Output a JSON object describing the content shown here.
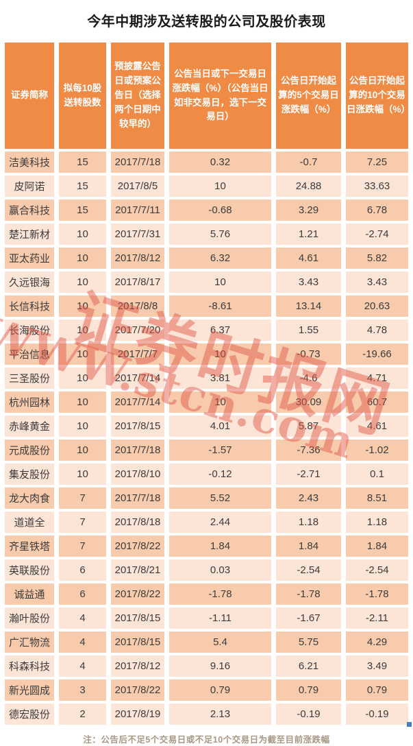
{
  "title": "今年中期涉及送转股的公司及股价表现",
  "note": "注：公告后不足5个交易日或不足10个交易日为截至目前涨跌幅",
  "watermark": {
    "cn_text": "证券时报网",
    "url_text": "WWW.stcn.com",
    "color": "#e05644"
  },
  "colors": {
    "header_bg": "#f08b45",
    "row_dark": "#f8cbad",
    "row_light": "#fce4d6",
    "header_text": "#ffffff",
    "body_text": "#3b3b3b",
    "note_text": "#a89784",
    "title_text": "#1a1a1a",
    "handle_marker": "#4a7ebb"
  },
  "chart_data": {
    "type": "table",
    "title": "今年中期涉及送转股的公司及股价表现",
    "columns": [
      "证券简称",
      "拟每10股送转股数",
      "预披露公告日或预案公告日（选择两个日期中较早的）",
      "公告当日或下一交易日涨跌幅（%）（公告当日如非交易日，选下一交易日）",
      "公告日开始起算的5个交易日涨跌幅（%）",
      "公告日开始起算的10个交易日涨跌幅（%）"
    ],
    "rows": [
      [
        "洁美科技",
        "15",
        "2017/7/18",
        "0.32",
        "-0.7",
        "7.25"
      ],
      [
        "皮阿诺",
        "15",
        "2017/8/5",
        "10",
        "24.88",
        "33.63"
      ],
      [
        "赢合科技",
        "15",
        "2017/7/11",
        "-0.68",
        "3.29",
        "6.78"
      ],
      [
        "楚江新材",
        "10",
        "2017/7/31",
        "5.76",
        "1.21",
        "-2.74"
      ],
      [
        "亚太药业",
        "10",
        "2017/8/12",
        "6.32",
        "4.61",
        "5.82"
      ],
      [
        "久远银海",
        "10",
        "2017/8/17",
        "10",
        "3.43",
        "3.43"
      ],
      [
        "长信科技",
        "10",
        "2017/8/8",
        "-8.61",
        "13.14",
        "20.63"
      ],
      [
        "长海股份",
        "10",
        "2017/7/20",
        "6.37",
        "1.55",
        "4.78"
      ],
      [
        "平治信息",
        "10",
        "2017/7/7",
        "10",
        "-0.73",
        "-19.66"
      ],
      [
        "三圣股份",
        "10",
        "2017/7/14",
        "3.81",
        "-4.6",
        "4.71"
      ],
      [
        "杭州园林",
        "10",
        "2017/7/14",
        "10",
        "30.09",
        "60.7"
      ],
      [
        "赤峰黄金",
        "10",
        "2017/8/15",
        "4.01",
        "5.87",
        "4.61"
      ],
      [
        "元成股份",
        "10",
        "2017/7/18",
        "-1.57",
        "-7.36",
        "-1.02"
      ],
      [
        "集友股份",
        "10",
        "2017/8/10",
        "-0.12",
        "-2.71",
        "0.1"
      ],
      [
        "龙大肉食",
        "7",
        "2017/7/18",
        "5.52",
        "2.43",
        "8.51"
      ],
      [
        "道道全",
        "7",
        "2017/8/18",
        "2.44",
        "1.18",
        "1.18"
      ],
      [
        "齐星铁塔",
        "7",
        "2017/8/22",
        "1.84",
        "1.84",
        "1.84"
      ],
      [
        "英联股份",
        "6",
        "2017/8/21",
        "0.03",
        "-2.54",
        "-2.54"
      ],
      [
        "诚益通",
        "6",
        "2017/8/22",
        "-1.78",
        "-1.78",
        "-1.78"
      ],
      [
        "瀚叶股份",
        "4",
        "2017/8/15",
        "-1.11",
        "-1.67",
        "-2.11"
      ],
      [
        "广汇物流",
        "4",
        "2017/8/15",
        "5.4",
        "5.75",
        "4.29"
      ],
      [
        "科森科技",
        "4",
        "2017/8/12",
        "9.16",
        "6.21",
        "3.49"
      ],
      [
        "新光圆成",
        "3",
        "2017/8/22",
        "0.79",
        "0.79",
        "0.79"
      ],
      [
        "德宏股份",
        "2",
        "2017/8/19",
        "2.13",
        "-0.19",
        "-0.19"
      ]
    ]
  }
}
